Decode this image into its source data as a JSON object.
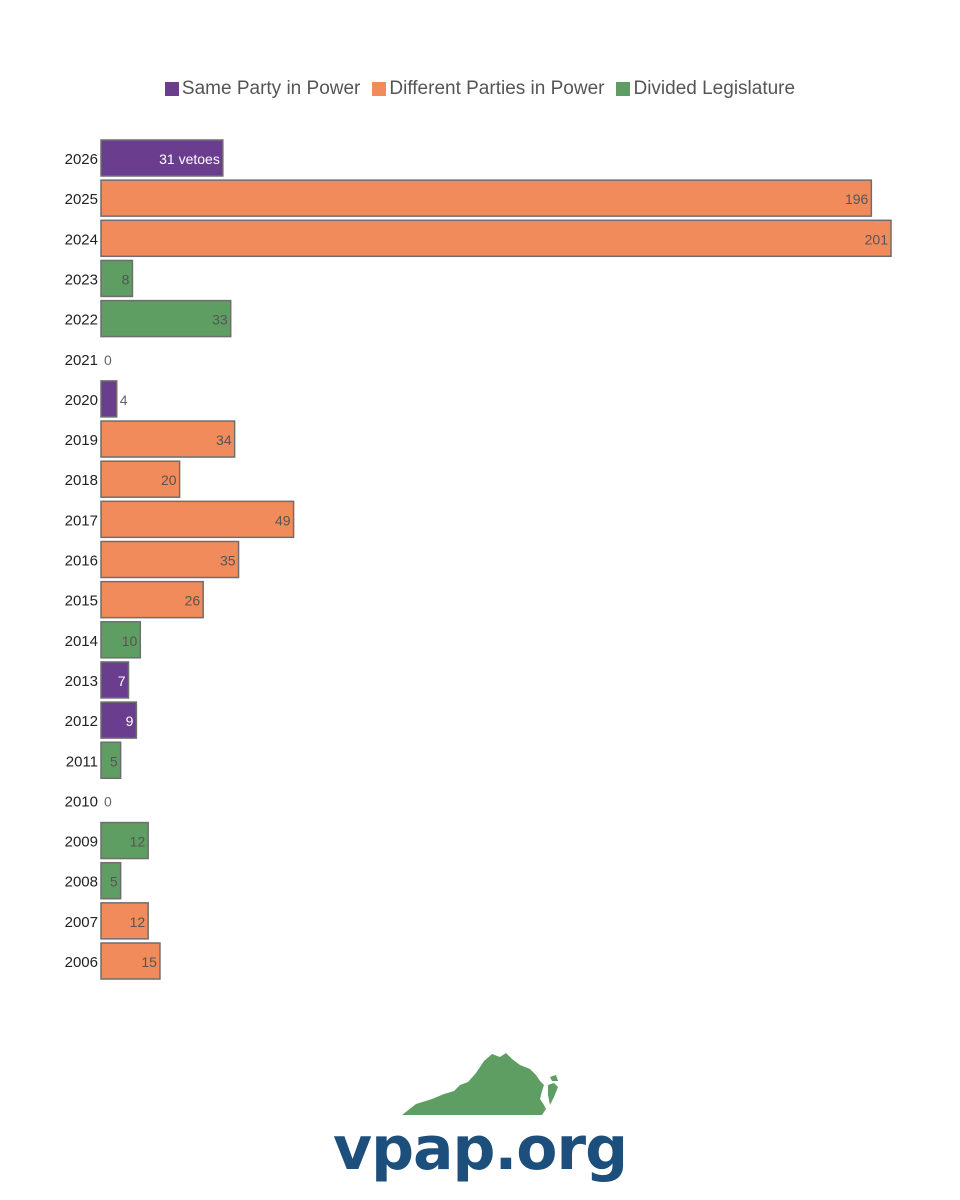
{
  "chart_data": {
    "type": "bar",
    "orientation": "horizontal",
    "legend": [
      {
        "name": "Same Party in Power",
        "color": "#6a3d8f"
      },
      {
        "name": "Different Parties in Power",
        "color": "#f28b5b"
      },
      {
        "name": "Divided Legislature",
        "color": "#5e9e63"
      }
    ],
    "legend_position": "top-center",
    "categories": [
      "2026",
      "2025",
      "2024",
      "2023",
      "2022",
      "2021",
      "2020",
      "2019",
      "2018",
      "2017",
      "2016",
      "2015",
      "2014",
      "2013",
      "2012",
      "2011",
      "2010",
      "2009",
      "2008",
      "2007",
      "2006"
    ],
    "values": [
      31,
      196,
      201,
      8,
      33,
      0,
      4,
      34,
      20,
      49,
      35,
      26,
      10,
      7,
      9,
      5,
      0,
      12,
      5,
      12,
      15
    ],
    "value_labels": [
      "31 vetoes",
      "196",
      "201",
      "8",
      "33",
      "0",
      "4",
      "34",
      "20",
      "49",
      "35",
      "26",
      "10",
      "7",
      "9",
      "5",
      "0",
      "12",
      "5",
      "12",
      "15"
    ],
    "groups": [
      "Same Party in Power",
      "Different Parties in Power",
      "Different Parties in Power",
      "Divided Legislature",
      "Divided Legislature",
      "Same Party in Power",
      "Same Party in Power",
      "Different Parties in Power",
      "Different Parties in Power",
      "Different Parties in Power",
      "Different Parties in Power",
      "Different Parties in Power",
      "Divided Legislature",
      "Same Party in Power",
      "Same Party in Power",
      "Divided Legislature",
      "Divided Legislature",
      "Divided Legislature",
      "Divided Legislature",
      "Different Parties in Power",
      "Different Parties in Power"
    ],
    "xlim": [
      0,
      201
    ],
    "grid": false,
    "title": "",
    "xlabel": "",
    "ylabel": ""
  },
  "footer": {
    "logo_text": "vpap.org",
    "logo_color": "#1d4f7c",
    "map_color": "#5e9e63"
  }
}
